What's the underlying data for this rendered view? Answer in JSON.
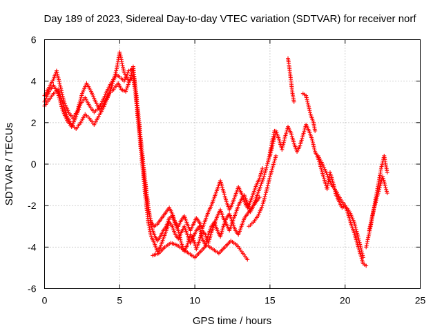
{
  "chart_data": {
    "type": "scatter",
    "title": "Day 189 of 2023, Sidereal Day-to-day VTEC variation (SDTVAR) for receiver norf",
    "xlabel": "GPS time / hours",
    "ylabel": "SDTVAR / TECUs",
    "xlim": [
      0,
      25
    ],
    "ylim": [
      -6,
      6
    ],
    "xticks": [
      0,
      5,
      10,
      15,
      20,
      25
    ],
    "yticks": [
      -6,
      -4,
      -2,
      0,
      2,
      4,
      6
    ],
    "grid": true,
    "marker": "+",
    "color": "#ff0000",
    "series": [
      {
        "name": "SDTVAR",
        "segments": [
          {
            "x": [
              0.0,
              0.3,
              0.6,
              0.9,
              1.2,
              1.5,
              1.8,
              2.1,
              2.4,
              2.7,
              3.0,
              3.3,
              3.6,
              3.9,
              4.2,
              4.5,
              4.8,
              5.0,
              5.3,
              5.6,
              5.9,
              6.1,
              6.3,
              6.5,
              6.7,
              6.9,
              7.1,
              7.3,
              7.5,
              7.7,
              7.9,
              8.1,
              8.3,
              8.5,
              8.7,
              8.9,
              9.1,
              9.3,
              9.5,
              9.7,
              9.9,
              10.1,
              10.3,
              10.5,
              10.7,
              10.9,
              11.1,
              11.3,
              11.5,
              11.7,
              11.9,
              12.1,
              12.3,
              12.5,
              12.7,
              12.9,
              13.1,
              13.3,
              13.5,
              13.7,
              13.9,
              14.1,
              14.3
            ],
            "y": [
              3.0,
              3.5,
              3.8,
              3.4,
              2.6,
              2.1,
              1.8,
              2.3,
              2.9,
              3.2,
              2.8,
              2.5,
              2.7,
              3.1,
              3.6,
              4.0,
              4.3,
              4.2,
              4.0,
              4.5,
              4.6,
              3.0,
              1.5,
              0.0,
              -1.5,
              -2.8,
              -3.5,
              -3.8,
              -4.2,
              -4.0,
              -3.6,
              -3.2,
              -2.8,
              -3.0,
              -3.4,
              -3.6,
              -3.3,
              -3.0,
              -3.4,
              -3.8,
              -3.5,
              -3.2,
              -3.0,
              -3.6,
              -3.9,
              -3.4,
              -3.0,
              -2.8,
              -3.2,
              -3.5,
              -3.0,
              -2.6,
              -2.4,
              -2.8,
              -3.2,
              -3.4,
              -3.0,
              -2.6,
              -2.4,
              -2.2,
              -2.0,
              -1.8,
              -1.6
            ]
          },
          {
            "x": [
              0.0,
              0.3,
              0.6,
              0.9,
              1.2,
              1.5,
              1.8,
              2.1,
              2.4,
              2.7,
              3.0,
              3.3,
              3.6,
              3.9,
              4.2,
              4.5,
              4.8,
              5.0,
              5.3,
              5.6,
              5.9,
              6.1,
              6.3,
              6.5,
              6.7,
              6.9,
              7.1,
              7.3,
              7.5,
              7.7,
              7.9,
              8.1,
              8.3,
              8.5,
              8.7,
              8.9,
              9.1,
              9.3,
              9.5,
              9.7,
              9.9,
              10.1,
              10.3,
              10.5,
              10.7,
              10.9,
              11.1,
              11.3,
              11.5,
              11.7,
              11.9,
              12.1,
              12.3,
              12.5,
              12.7,
              12.9,
              13.1,
              13.3,
              13.5,
              13.7,
              13.9,
              14.1,
              14.3,
              14.6,
              14.9,
              15.1,
              15.3
            ],
            "y": [
              2.8,
              3.1,
              3.4,
              3.6,
              3.0,
              2.3,
              1.9,
              1.7,
              2.0,
              2.4,
              2.2,
              1.9,
              2.3,
              2.7,
              3.2,
              3.8,
              4.6,
              5.4,
              4.4,
              4.0,
              4.2,
              3.2,
              1.8,
              0.5,
              -0.8,
              -2.0,
              -3.0,
              -3.4,
              -3.7,
              -3.5,
              -3.2,
              -3.0,
              -2.6,
              -2.5,
              -2.9,
              -3.2,
              -3.8,
              -4.2,
              -3.9,
              -3.4,
              -3.6,
              -4.1,
              -3.7,
              -3.2,
              -3.4,
              -3.8,
              -3.3,
              -2.9,
              -2.5,
              -2.2,
              -2.6,
              -2.9,
              -3.2,
              -2.8,
              -2.4,
              -2.0,
              -1.7,
              -1.5,
              -1.9,
              -2.3,
              -2.0,
              -1.6,
              -1.2,
              -0.6,
              0.2,
              0.9,
              1.6
            ]
          },
          {
            "x": [
              0.0,
              0.3,
              0.6,
              0.8,
              1.0,
              1.3,
              1.6,
              1.9,
              2.2,
              2.5,
              2.8,
              3.1,
              3.4,
              3.7,
              4.0,
              4.3,
              4.6,
              4.9,
              5.1,
              5.4,
              5.7,
              5.9,
              6.1,
              6.3,
              6.5,
              6.7,
              6.9,
              7.1,
              7.3,
              7.5,
              7.7,
              7.9,
              8.1,
              8.3,
              8.5,
              8.7,
              8.9,
              9.1,
              9.3,
              9.5,
              9.7,
              9.9,
              10.1,
              10.3,
              10.5,
              10.7,
              10.9,
              11.1,
              11.3,
              11.5,
              11.7,
              11.9,
              12.1,
              12.3,
              12.5,
              12.7,
              12.9,
              13.1,
              13.3,
              13.5,
              13.7,
              13.9,
              14.1,
              14.3,
              14.5
            ],
            "y": [
              3.3,
              3.7,
              4.1,
              4.5,
              3.9,
              3.0,
              2.5,
              2.2,
              2.6,
              3.4,
              3.9,
              3.5,
              3.0,
              2.6,
              3.0,
              3.4,
              3.6,
              3.9,
              3.6,
              3.5,
              4.1,
              4.7,
              3.4,
              2.0,
              0.5,
              -1.0,
              -2.2,
              -2.8,
              -3.0,
              -2.9,
              -2.7,
              -2.5,
              -2.3,
              -2.1,
              -2.4,
              -2.8,
              -3.0,
              -2.7,
              -2.5,
              -2.9,
              -3.2,
              -2.9,
              -2.6,
              -2.8,
              -3.1,
              -2.7,
              -2.3,
              -2.0,
              -1.6,
              -1.2,
              -0.8,
              -1.3,
              -1.8,
              -2.2,
              -1.9,
              -1.5,
              -1.1,
              -1.4,
              -1.8,
              -2.1,
              -1.8,
              -1.4,
              -1.0,
              -0.7,
              -0.2
            ]
          },
          {
            "x": [
              7.2,
              7.6,
              8.0,
              8.4,
              8.8,
              9.2,
              9.6,
              10.0,
              10.4,
              10.8,
              11.2,
              11.6,
              12.0,
              12.4,
              12.8,
              13.2,
              13.5
            ],
            "y": [
              -4.4,
              -4.3,
              -4.0,
              -3.8,
              -3.9,
              -4.1,
              -4.3,
              -4.5,
              -4.2,
              -3.9,
              -4.1,
              -4.3,
              -4.0,
              -3.7,
              -3.9,
              -4.3,
              -4.6
            ]
          },
          {
            "x": [
              13.6,
              13.9,
              14.2,
              14.5,
              14.8,
              15.0,
              15.2,
              15.4
            ],
            "y": [
              -3.0,
              -2.8,
              -2.5,
              -2.0,
              -1.2,
              -0.6,
              -0.1,
              0.4
            ]
          },
          {
            "x": [
              15.0,
              15.2,
              15.4,
              15.6,
              15.8,
              16.0,
              16.2,
              16.4,
              16.6,
              16.8,
              17.0,
              17.2,
              17.4,
              17.6,
              17.8,
              18.0,
              18.2,
              18.4,
              18.6,
              18.8,
              19.0,
              19.2,
              19.4,
              19.6,
              19.8,
              20.0,
              20.2,
              20.4,
              20.6,
              20.8,
              21.0,
              21.2,
              21.4
            ],
            "y": [
              0.4,
              1.0,
              1.6,
              1.2,
              0.7,
              1.3,
              1.8,
              1.5,
              1.0,
              0.6,
              0.9,
              1.4,
              1.9,
              1.6,
              1.2,
              0.6,
              0.3,
              -0.2,
              -0.7,
              -1.2,
              -0.4,
              -0.9,
              -1.5,
              -1.8,
              -2.1,
              -2.0,
              -2.4,
              -2.9,
              -3.3,
              -3.8,
              -4.3,
              -4.8,
              -4.9
            ]
          },
          {
            "x": [
              18.2,
              18.5,
              18.8,
              19.1,
              19.4,
              19.7,
              20.0,
              20.3,
              20.6,
              20.9,
              21.2
            ],
            "y": [
              0.4,
              0.0,
              -0.5,
              -1.0,
              -1.3,
              -1.7,
              -2.0,
              -2.3,
              -2.8,
              -3.6,
              -4.5
            ]
          },
          {
            "x": [
              16.2,
              16.3,
              16.4,
              16.5,
              16.6
            ],
            "y": [
              5.1,
              4.6,
              4.0,
              3.4,
              3.0
            ]
          },
          {
            "x": [
              17.2,
              17.4,
              17.7,
              17.9,
              18.0
            ],
            "y": [
              3.4,
              3.3,
              2.4,
              2.0,
              1.6
            ]
          },
          {
            "x": [
              21.4,
              21.7,
              22.0,
              22.2,
              22.4,
              22.6,
              22.8
            ],
            "y": [
              -4.0,
              -3.0,
              -1.8,
              -1.0,
              -0.2,
              0.4,
              -0.4
            ]
          },
          {
            "x": [
              21.6,
              21.9,
              22.2,
              22.5,
              22.8
            ],
            "y": [
              -3.2,
              -2.2,
              -1.4,
              -0.6,
              -1.4
            ]
          }
        ]
      }
    ]
  }
}
